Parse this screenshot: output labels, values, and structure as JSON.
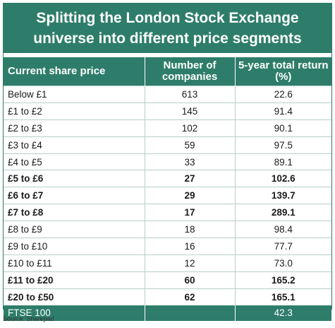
{
  "chart_data": {
    "type": "table",
    "title": "Splitting the London Stock Exchange universe into different price segments",
    "columns": [
      "Current share price",
      "Number of companies",
      "5-year total return (%)"
    ],
    "rows": [
      {
        "price": "Below £1",
        "companies": "613",
        "return": "22.6",
        "bold": false
      },
      {
        "price": "£1 to £2",
        "companies": "145",
        "return": "91.4",
        "bold": false
      },
      {
        "price": "£2 to £3",
        "companies": "102",
        "return": "90.1",
        "bold": false
      },
      {
        "price": "£3 to £4",
        "companies": "59",
        "return": "97.5",
        "bold": false
      },
      {
        "price": "£4 to £5",
        "companies": "33",
        "return": "89.1",
        "bold": false
      },
      {
        "price": "£5 to £6",
        "companies": "27",
        "return": "102.6",
        "bold": true
      },
      {
        "price": "£6 to £7",
        "companies": "29",
        "return": "139.7",
        "bold": true
      },
      {
        "price": "£7 to £8",
        "companies": "17",
        "return": "289.1",
        "bold": true
      },
      {
        "price": "£8 to £9",
        "companies": "18",
        "return": "98.4",
        "bold": false
      },
      {
        "price": "£9 to £10",
        "companies": "16",
        "return": "77.7",
        "bold": false
      },
      {
        "price": "£10 to £11",
        "companies": "12",
        "return": "73.0",
        "bold": false
      },
      {
        "price": "£11 to £20",
        "companies": "60",
        "return": "165.2",
        "bold": true
      },
      {
        "price": "£20 to £50",
        "companies": "62",
        "return": "165.1",
        "bold": true
      }
    ],
    "footer": {
      "price": "FTSE 100",
      "companies": "",
      "return": "42.3"
    },
    "source": "Source: Sharepad"
  },
  "colors": {
    "header_bg": "#2e7d6a",
    "header_text": "#ffffff",
    "row_divider": "#b7cfc8"
  }
}
